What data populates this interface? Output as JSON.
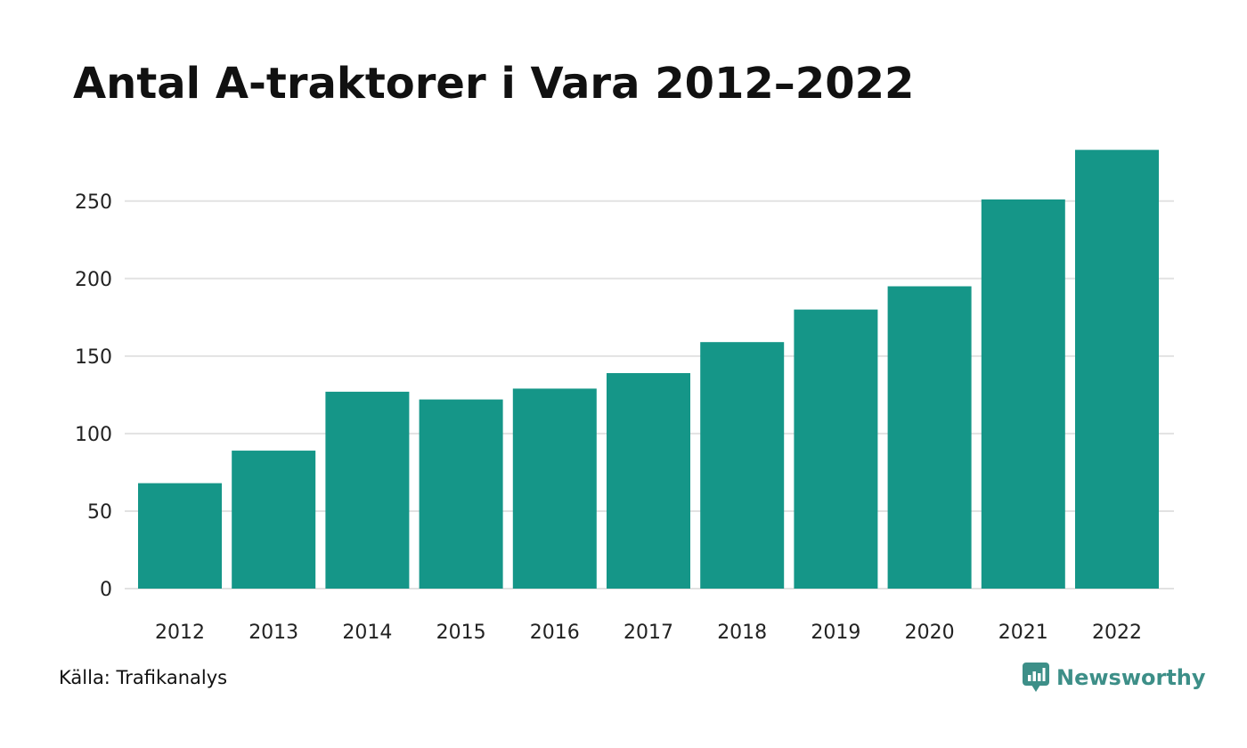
{
  "title": "Antal A-traktorer i Vara 2012–2022",
  "source": "Källa: Trafikanalys",
  "brand": {
    "name": "Newsworthy",
    "icon": "newsworthy-logo-icon"
  },
  "colors": {
    "bar": "#159688",
    "grid": "#e2e2e2",
    "brand": "#3d8f88"
  },
  "chart_data": {
    "type": "bar",
    "title": "Antal A-traktorer i Vara 2012–2022",
    "xlabel": "",
    "ylabel": "",
    "categories": [
      "2012",
      "2013",
      "2014",
      "2015",
      "2016",
      "2017",
      "2018",
      "2019",
      "2020",
      "2021",
      "2022"
    ],
    "values": [
      68,
      89,
      127,
      122,
      129,
      139,
      159,
      180,
      195,
      251,
      283
    ],
    "ylim": [
      0,
      283
    ],
    "yticks": [
      0,
      50,
      100,
      150,
      200,
      250
    ],
    "grid": true,
    "legend": "none"
  }
}
